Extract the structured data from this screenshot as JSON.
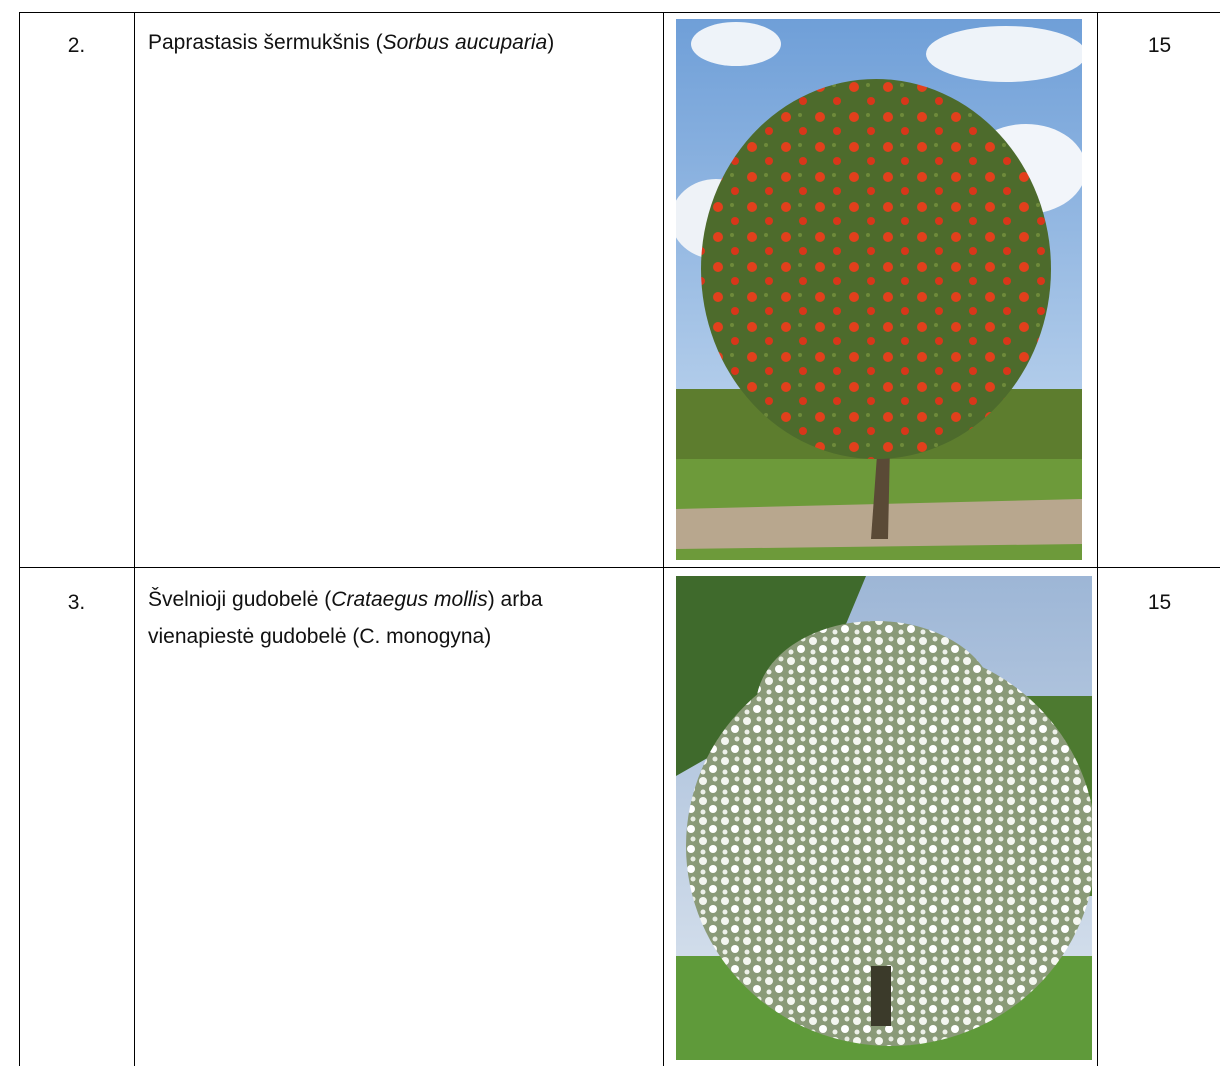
{
  "table": {
    "rows": [
      {
        "number": "2.",
        "name": {
          "before": "Paprastasis šermukšnis (",
          "latin": "Sorbus aucuparia",
          "after": ")"
        },
        "count": "15"
      },
      {
        "number": "3.",
        "name": {
          "before": "Švelnioji gudobelė (",
          "latin": "Crataegus mollis",
          "after": ") arba vienapiestė gudobelė (C. monogyna)"
        },
        "count": "15"
      }
    ]
  }
}
